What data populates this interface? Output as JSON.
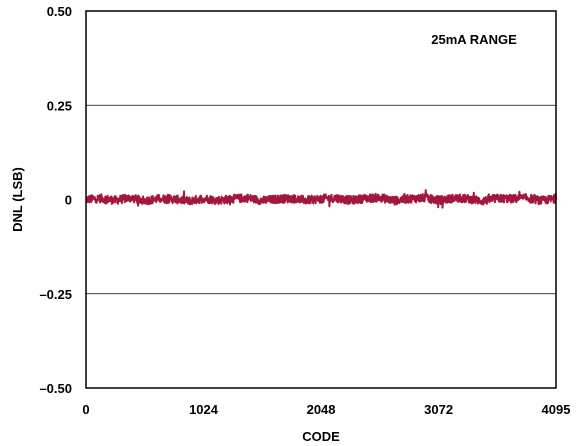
{
  "chart_data": {
    "type": "line",
    "title": "",
    "xlabel": "CODE",
    "ylabel": "DNL (LSB)",
    "annotation": "25mA RANGE",
    "xlim": [
      0,
      4095
    ],
    "ylim": [
      -0.5,
      0.5
    ],
    "x_ticks": [
      0,
      1024,
      2048,
      3072,
      4095
    ],
    "x_tick_labels": [
      "0",
      "1024",
      "2048",
      "3072",
      "4095"
    ],
    "y_ticks": [
      0.5,
      0.25,
      0,
      -0.25,
      -0.5
    ],
    "y_tick_labels": [
      "0.50",
      "0.25",
      "0",
      "–0.25",
      "–0.50"
    ],
    "grid": "horizontal",
    "series": [
      {
        "color": "#a3173f",
        "x": [
          0,
          128,
          256,
          384,
          512,
          640,
          768,
          896,
          1024,
          1152,
          1280,
          1408,
          1536,
          1664,
          1792,
          1920,
          2048,
          2176,
          2304,
          2432,
          2560,
          2688,
          2816,
          2944,
          3072,
          3200,
          3328,
          3456,
          3584,
          3712,
          3840,
          3968,
          4095
        ],
        "values": [
          0.0,
          0.003,
          -0.002,
          0.004,
          -0.003,
          0.002,
          0.001,
          -0.004,
          0.003,
          -0.002,
          0.002,
          0.004,
          -0.003,
          0.001,
          0.003,
          -0.002,
          0.002,
          0.004,
          -0.002,
          0.003,
          0.005,
          -0.003,
          0.002,
          0.004,
          -0.002,
          0.003,
          0.002,
          -0.004,
          0.003,
          0.002,
          0.004,
          -0.003,
          0.002
        ],
        "band_min": -0.02,
        "band_max": 0.02
      }
    ]
  }
}
